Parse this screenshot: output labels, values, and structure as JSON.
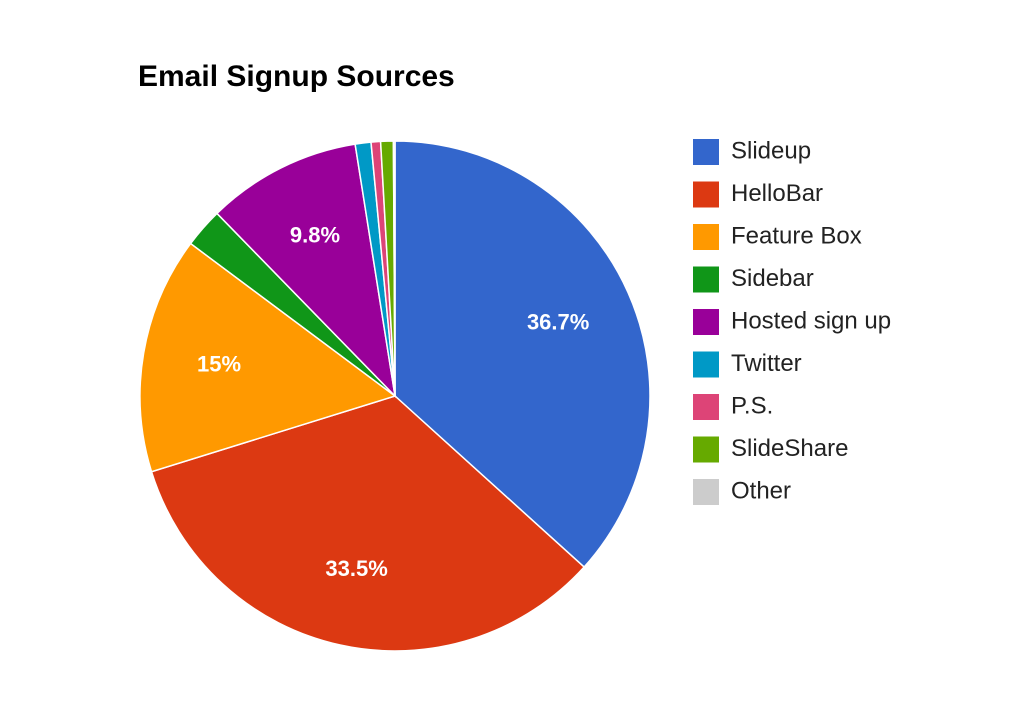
{
  "chart_data": {
    "type": "pie",
    "title": "Email Signup Sources",
    "categories": [
      "Slideup",
      "HelloBar",
      "Feature Box",
      "Sidebar",
      "Hosted sign up",
      "Twitter",
      "P.S.",
      "SlideShare",
      "Other"
    ],
    "values": [
      36.7,
      33.5,
      15,
      2.5,
      9.8,
      1.0,
      0.6,
      0.8,
      0.1
    ],
    "value_labels": [
      "36.7%",
      "33.5%",
      "15%",
      null,
      "9.8%",
      null,
      null,
      null,
      null
    ],
    "colors": [
      "#3366cc",
      "#dc3912",
      "#ff9900",
      "#109618",
      "#990099",
      "#0099c6",
      "#dd4477",
      "#66aa00",
      "#cccccc"
    ],
    "legend": "right"
  }
}
